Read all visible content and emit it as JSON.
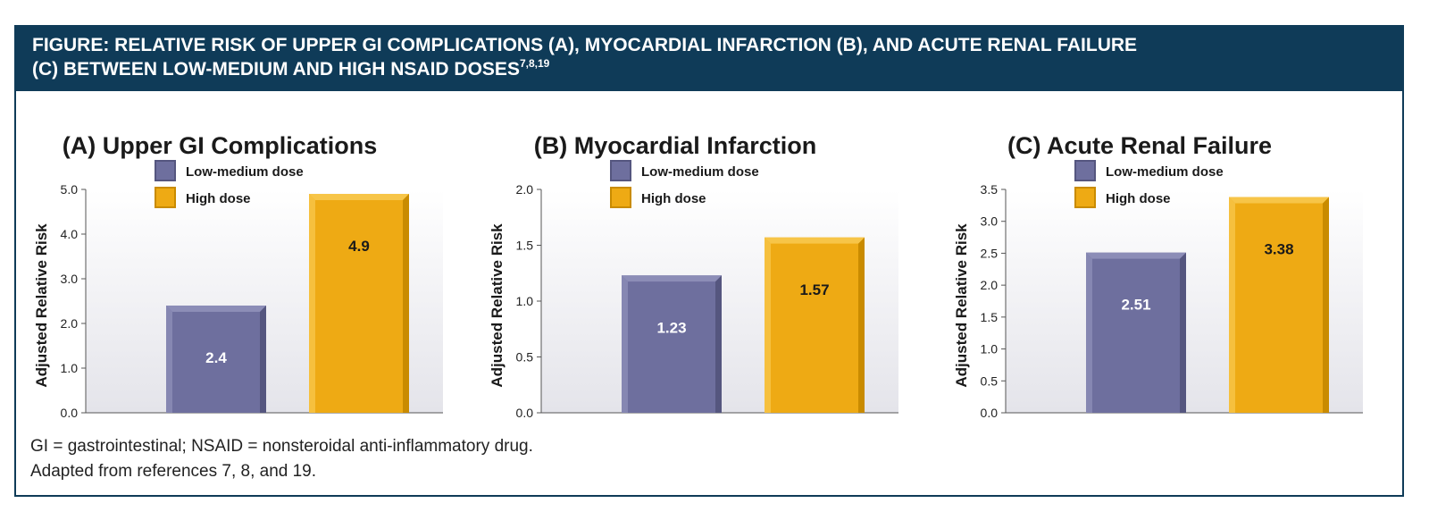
{
  "figure": {
    "header_line1": "FIGURE: RELATIVE RISK OF UPPER GI COMPLICATIONS (A), MYOCARDIAL INFARCTION (B), AND ACUTE RENAL FAILURE",
    "header_line2": "(C) BETWEEN LOW-MEDIUM AND HIGH NSAID DOSES",
    "header_refs": "7,8,19",
    "footnote_line1": "GI = gastrointestinal; NSAID = nonsteroidal anti-inflammatory drug.",
    "footnote_line2": "Adapted from references 7, 8, and 19."
  },
  "colors": {
    "low": "#6e6f9e",
    "low_dark": "#55567f",
    "low_light": "#8c8db7",
    "high": "#eeaa14",
    "high_dark": "#c98b00",
    "high_light": "#f7c548",
    "plot_bg_top": "#ffffff",
    "plot_bg_bottom": "#e4e4ea"
  },
  "chart_data": [
    {
      "type": "bar",
      "title": "(A) Upper GI Complications",
      "ylabel": "Adjusted Relative Risk",
      "ylim": [
        0,
        5.0
      ],
      "yticks": [
        "0.0",
        "1.0",
        "2.0",
        "3.0",
        "4.0",
        "5.0"
      ],
      "ytick_values": [
        0,
        1,
        2,
        3,
        4,
        5
      ],
      "series": [
        {
          "name": "Low-medium dose",
          "values": [
            2.4
          ],
          "labels": [
            "2.4"
          ]
        },
        {
          "name": "High dose",
          "values": [
            4.9
          ],
          "labels": [
            "4.9"
          ]
        }
      ],
      "legend": "top-left"
    },
    {
      "type": "bar",
      "title": "(B) Myocardial Infarction",
      "ylabel": "Adjusted Relative Risk",
      "ylim": [
        0,
        2.0
      ],
      "yticks": [
        "0.0",
        "0.5",
        "1.0",
        "1.5",
        "2.0"
      ],
      "ytick_values": [
        0,
        0.5,
        1.0,
        1.5,
        2.0
      ],
      "series": [
        {
          "name": "Low-medium dose",
          "values": [
            1.23
          ],
          "labels": [
            "1.23"
          ]
        },
        {
          "name": "High dose",
          "values": [
            1.57
          ],
          "labels": [
            "1.57"
          ]
        }
      ],
      "legend": "top-left"
    },
    {
      "type": "bar",
      "title": "(C) Acute Renal Failure",
      "ylabel": "Adjusted Relative Risk",
      "ylim": [
        0,
        3.5
      ],
      "yticks": [
        "0.0",
        "0.5",
        "1.0",
        "1.5",
        "2.0",
        "2.5",
        "3.0",
        "3.5"
      ],
      "ytick_values": [
        0,
        0.5,
        1.0,
        1.5,
        2.0,
        2.5,
        3.0,
        3.5
      ],
      "series": [
        {
          "name": "Low-medium dose",
          "values": [
            2.51
          ],
          "labels": [
            "2.51"
          ]
        },
        {
          "name": "High dose",
          "values": [
            3.38
          ],
          "labels": [
            "3.38"
          ]
        }
      ],
      "legend": "top-left"
    }
  ]
}
